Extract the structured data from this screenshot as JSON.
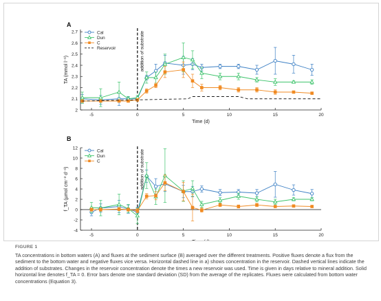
{
  "figure": {
    "label": "FIGURE 1",
    "caption": "TA concentrations in bottom waters (A) and fluxes at the sediment surface (B) averaged over the different treatments. Positive fluxes denote a flux from the sediment to the bottom water and negative fluxes vice versa. Horizontal dashed line in a) shows concentration in the reservoir. Dashed vertical lines indicate the addition of substrates. Changes in the reservoir concentration denote the times a new reservoir was used. Time is given in days relative to mineral addition. Solid horizontal line denotes f_TA = 0. Error bars denote one standard deviation (SD) from the average of the replicates. Fluxes were calculated from bottom water concentrations (Equation 3).",
    "colors": {
      "Cal": "#3b7fc4",
      "Dun": "#3cc36a",
      "C": "#f08a22",
      "Reservoir": "#1a1a1a",
      "axis": "#222222",
      "annot": "#1a1a1a"
    }
  },
  "chart_data": [
    {
      "panel": "A",
      "type": "line",
      "xlabel": "Time (d)",
      "ylabel": "TA (mmol l⁻¹)",
      "annotation": "addition of substrate",
      "xlim": [
        -6.2,
        20
      ],
      "ylim": [
        2.0,
        2.72
      ],
      "xticks": [
        -5,
        0,
        5,
        10,
        15,
        20
      ],
      "yticks": [
        2.0,
        2.1,
        2.2,
        2.3,
        2.4,
        2.5,
        2.6,
        2.7
      ],
      "ytick_labels": [
        "2",
        "2.1",
        "2.2",
        "2.3",
        "2.4",
        "2.5",
        "2.6",
        "2.7"
      ],
      "legend": {
        "position": "top-left",
        "entries": [
          "Cal",
          "Dun",
          "C",
          "Reservoir"
        ]
      },
      "series": [
        {
          "name": "Cal",
          "marker": "circle",
          "x": [
            -6,
            -4,
            -2,
            -1,
            0,
            1,
            2,
            3,
            5,
            6,
            7,
            9,
            11,
            13,
            15,
            17,
            19
          ],
          "y": [
            2.1,
            2.09,
            2.1,
            2.1,
            2.1,
            2.29,
            2.35,
            2.42,
            2.4,
            2.41,
            2.38,
            2.39,
            2.39,
            2.36,
            2.44,
            2.41,
            2.36
          ],
          "err": [
            0.04,
            0.04,
            0.06,
            0.02,
            0.02,
            0.02,
            0.06,
            0.07,
            0.08,
            0.05,
            0.03,
            0.02,
            0.02,
            0.04,
            0.12,
            0.08,
            0.05
          ]
        },
        {
          "name": "Dun",
          "marker": "triangle",
          "x": [
            -6,
            -4,
            -2,
            -1,
            0,
            1,
            2,
            3,
            5,
            6,
            7,
            9,
            11,
            13,
            15,
            17,
            19
          ],
          "y": [
            2.11,
            2.11,
            2.16,
            2.1,
            2.11,
            2.29,
            2.29,
            2.41,
            2.47,
            2.45,
            2.33,
            2.3,
            2.3,
            2.27,
            2.25,
            2.25,
            2.25
          ],
          "err": [
            0.05,
            0.08,
            0.09,
            0.02,
            0.02,
            0.05,
            0.05,
            0.09,
            0.13,
            0.08,
            0.05,
            0.03,
            0.03,
            0.02,
            0.03,
            0.01,
            0.02
          ]
        },
        {
          "name": "C",
          "marker": "square",
          "x": [
            -6,
            -4,
            -2,
            -1,
            0,
            1,
            2,
            3,
            5,
            6,
            7,
            9,
            11,
            13,
            15,
            17,
            19
          ],
          "y": [
            2.08,
            2.08,
            2.08,
            2.08,
            2.09,
            2.17,
            2.22,
            2.34,
            2.36,
            2.26,
            2.2,
            2.2,
            2.18,
            2.18,
            2.16,
            2.16,
            2.15
          ],
          "err": [
            0.01,
            0.01,
            0.01,
            0.01,
            0.01,
            0.02,
            0.02,
            0.05,
            0.07,
            0.06,
            0.03,
            0.02,
            0.02,
            0.02,
            0.02,
            0.01,
            0.01
          ]
        },
        {
          "name": "Reservoir",
          "style": "dashed",
          "x": [
            -6,
            5.5,
            6,
            11,
            12,
            20
          ],
          "y": [
            2.08,
            2.1,
            2.12,
            2.12,
            2.1,
            2.1
          ]
        }
      ]
    },
    {
      "panel": "B",
      "type": "line",
      "xlabel": "Time (d)",
      "ylabel": "f_TA (µmol cm⁻² d⁻¹)",
      "annotation": "addition of substrate",
      "xlim": [
        -6.2,
        20
      ],
      "ylim": [
        -4,
        12
      ],
      "xticks": [
        -5,
        0,
        5,
        10,
        15,
        20
      ],
      "yticks": [
        -4,
        -2,
        0,
        2,
        4,
        6,
        8,
        10,
        12
      ],
      "legend": {
        "position": "top-left",
        "entries": [
          "Cal",
          "Dun",
          "C"
        ]
      },
      "series": [
        {
          "name": "Cal",
          "marker": "circle",
          "x": [
            -5,
            -4,
            -2,
            -1,
            0,
            1,
            2,
            3,
            5,
            6,
            7,
            9,
            11,
            13,
            15,
            17,
            19
          ],
          "y": [
            -0.5,
            0.3,
            0.6,
            0.1,
            -0.5,
            6.5,
            4.5,
            5.0,
            3.5,
            3.5,
            4.0,
            3.3,
            3.4,
            3.2,
            4.9,
            3.8,
            3.1
          ],
          "err": [
            0.7,
            0.8,
            1.2,
            0.8,
            0.9,
            1.2,
            1.5,
            1.5,
            1.2,
            1.0,
            0.6,
            0.6,
            0.5,
            0.7,
            2.5,
            1.0,
            0.8
          ]
        },
        {
          "name": "Dun",
          "marker": "triangle",
          "x": [
            -5,
            -4,
            -2,
            -1,
            0,
            1,
            2,
            3,
            5,
            6,
            7,
            9,
            11,
            13,
            15,
            17,
            19
          ],
          "y": [
            0.4,
            0.3,
            1.0,
            0.2,
            -1.2,
            6.6,
            2.5,
            6.6,
            3.6,
            4.1,
            1.0,
            1.8,
            2.6,
            2.0,
            1.5,
            2.0,
            2.0
          ],
          "err": [
            1.0,
            1.5,
            2.0,
            0.8,
            1.5,
            2.5,
            1.5,
            5.2,
            2.0,
            1.5,
            0.6,
            0.5,
            0.6,
            0.5,
            0.5,
            0.3,
            0.3
          ]
        },
        {
          "name": "C",
          "marker": "square",
          "x": [
            -5,
            -4,
            -2,
            -1,
            0,
            1,
            2,
            3,
            5,
            6,
            7,
            9,
            11,
            13,
            15,
            17,
            19
          ],
          "y": [
            0.0,
            0.0,
            0.1,
            0.0,
            -0.2,
            2.6,
            2.7,
            5.2,
            3.5,
            0.4,
            -0.1,
            0.9,
            0.6,
            0.9,
            0.6,
            0.7,
            0.6
          ],
          "err": [
            0.3,
            0.3,
            0.3,
            0.3,
            0.4,
            0.5,
            0.8,
            1.5,
            1.8,
            2.6,
            0.4,
            0.3,
            0.3,
            0.3,
            0.2,
            0.2,
            0.2
          ]
        }
      ]
    }
  ]
}
